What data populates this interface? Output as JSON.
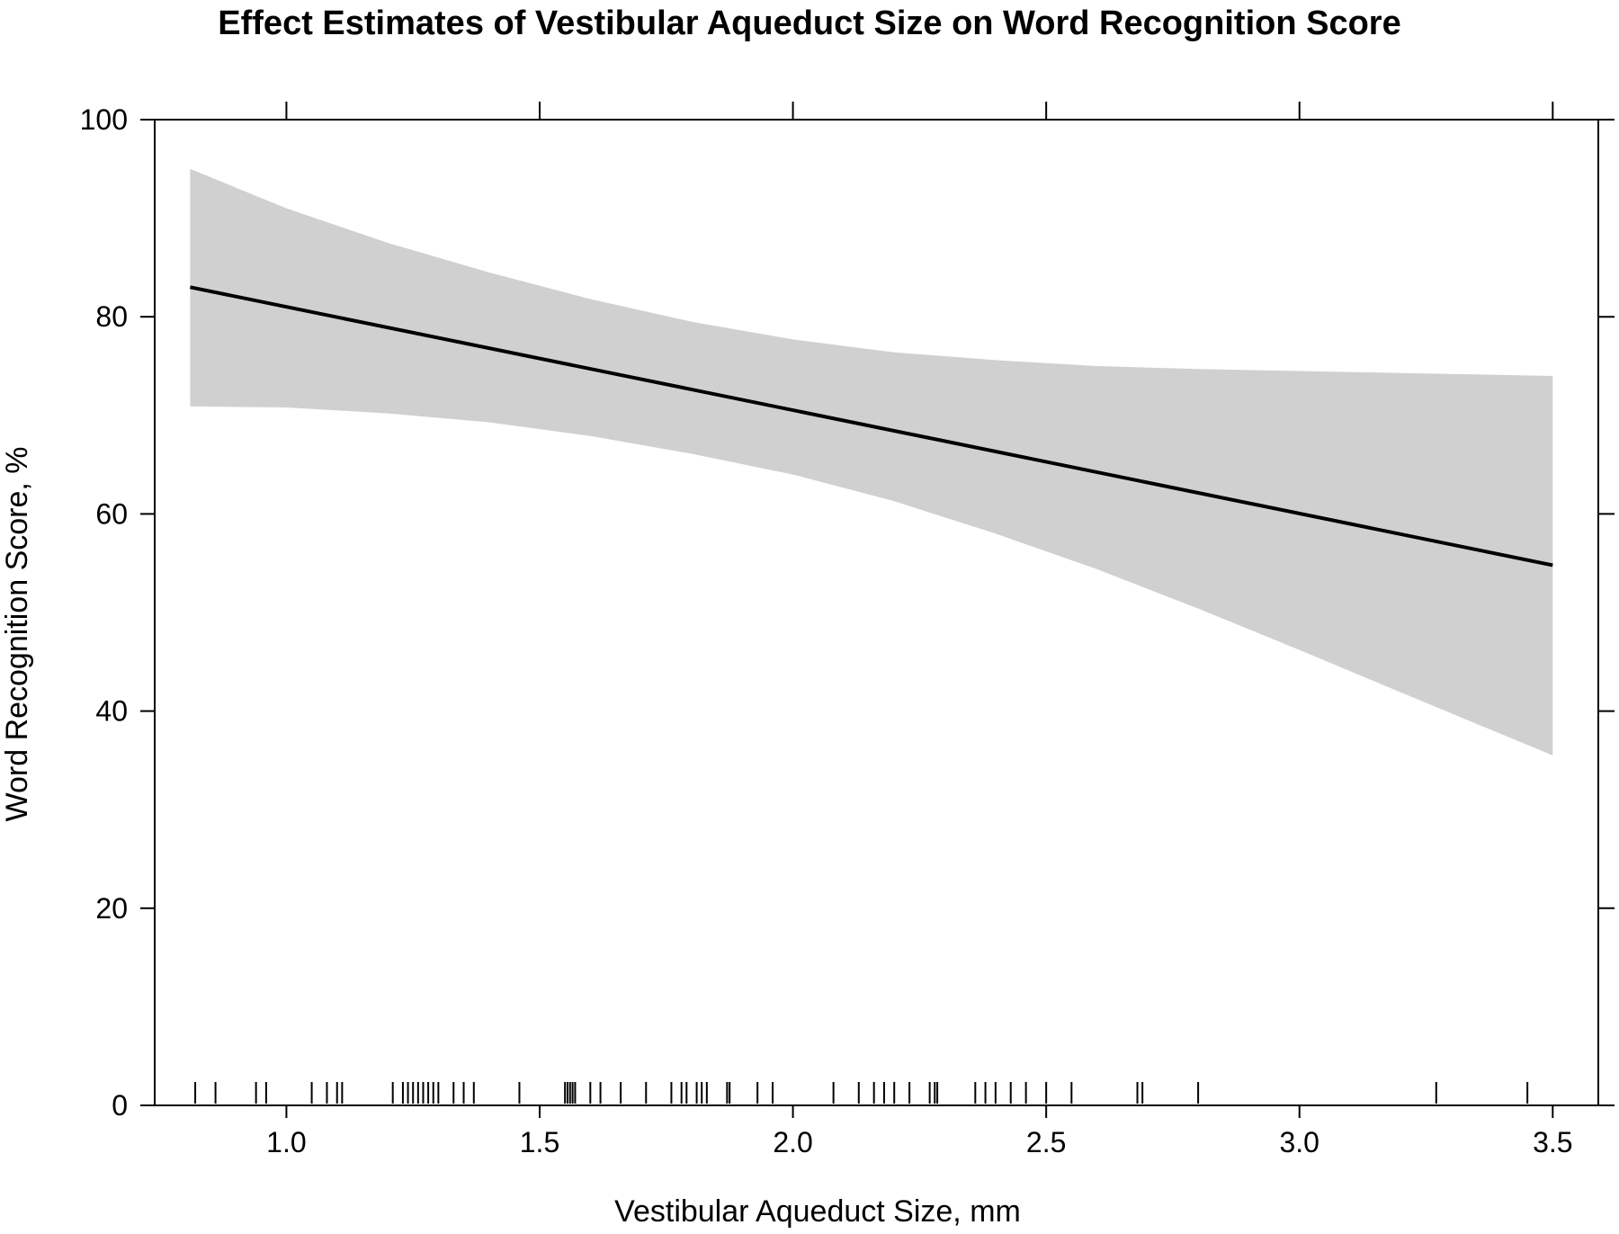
{
  "chart_data": {
    "type": "line",
    "title": "Effect Estimates of Vestibular Aqueduct Size on Word Recognition Score",
    "xlabel": "Vestibular Aqueduct Size, mm",
    "ylabel": "Word Recognition Score, %",
    "xlim": [
      0.74,
      3.59
    ],
    "ylim": [
      0,
      100
    ],
    "xticks": [
      1.0,
      1.5,
      2.0,
      2.5,
      3.0,
      3.5
    ],
    "xtick_labels": [
      "1.0",
      "1.5",
      "2.0",
      "2.5",
      "3.0",
      "3.5"
    ],
    "yticks": [
      0,
      20,
      40,
      60,
      80,
      100
    ],
    "ytick_labels": [
      "0",
      "20",
      "40",
      "60",
      "80",
      "100"
    ],
    "grid": false,
    "colors": {
      "line": "#000000",
      "band": "#d0d0d0",
      "axis": "#000000"
    },
    "series": [
      {
        "type": "line",
        "x": [
          0.81,
          3.5
        ],
        "y": [
          83.0,
          54.8
        ]
      }
    ],
    "confidence_band": {
      "x": [
        0.81,
        1.0,
        1.2,
        1.4,
        1.6,
        1.8,
        2.0,
        2.2,
        2.4,
        2.6,
        2.8,
        3.0,
        3.2,
        3.5
      ],
      "upper": [
        95.0,
        91.0,
        87.5,
        84.5,
        81.8,
        79.5,
        77.7,
        76.4,
        75.6,
        75.0,
        74.7,
        74.5,
        74.3,
        74.0
      ],
      "lower": [
        70.9,
        70.8,
        70.2,
        69.3,
        67.9,
        66.1,
        64.0,
        61.3,
        58.0,
        54.4,
        50.4,
        46.2,
        41.9,
        35.5
      ]
    },
    "rug": [
      0.82,
      0.86,
      0.94,
      0.96,
      1.05,
      1.08,
      1.1,
      1.11,
      1.21,
      1.23,
      1.24,
      1.25,
      1.26,
      1.27,
      1.28,
      1.29,
      1.3,
      1.33,
      1.35,
      1.37,
      1.46,
      1.55,
      1.555,
      1.56,
      1.565,
      1.57,
      1.6,
      1.62,
      1.66,
      1.71,
      1.76,
      1.78,
      1.79,
      1.81,
      1.82,
      1.83,
      1.87,
      1.875,
      1.93,
      1.96,
      2.08,
      2.13,
      2.16,
      2.18,
      2.2,
      2.23,
      2.27,
      2.28,
      2.285,
      2.36,
      2.38,
      2.4,
      2.43,
      2.46,
      2.5,
      2.55,
      2.68,
      2.69,
      2.8,
      3.27,
      3.45
    ]
  }
}
